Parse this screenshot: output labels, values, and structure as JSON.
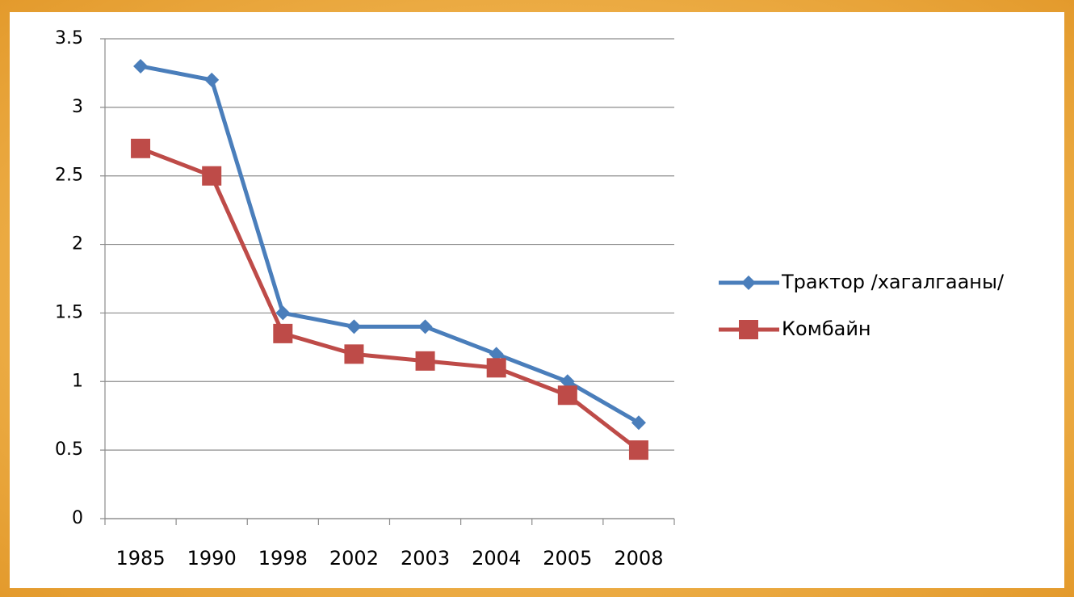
{
  "chart_data": {
    "type": "line",
    "categories": [
      "1985",
      "1990",
      "1998",
      "2002",
      "2003",
      "2004",
      "2005",
      "2008"
    ],
    "series": [
      {
        "name": "Трактор /хагалгааны/",
        "color": "#4a7ebb",
        "marker": "diamond",
        "values": [
          3.3,
          3.2,
          1.5,
          1.4,
          1.4,
          1.2,
          1.0,
          0.7
        ]
      },
      {
        "name": "Комбайн",
        "color": "#be4b48",
        "marker": "square",
        "values": [
          2.7,
          2.5,
          1.35,
          1.2,
          1.15,
          1.1,
          0.9,
          0.5
        ]
      }
    ],
    "ylim": [
      0,
      3.5
    ],
    "yticks": [
      0,
      0.5,
      1,
      1.5,
      2,
      2.5,
      3,
      3.5
    ],
    "grid": true,
    "legend": "right"
  }
}
